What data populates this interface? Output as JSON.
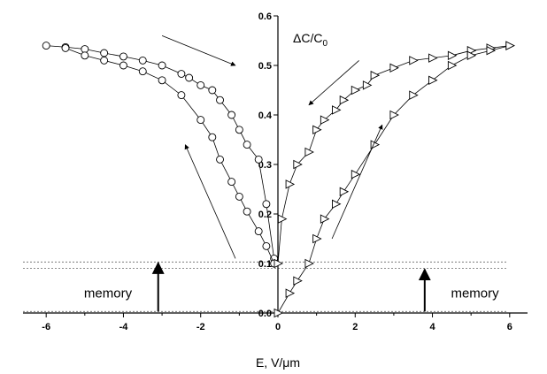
{
  "chart_data": {
    "type": "scatter",
    "xlabel": "E, V/μm",
    "ylabel_main": "ΔC/C",
    "ylabel_sub": "0",
    "xlim": [
      -6.6,
      6.6
    ],
    "ylim": [
      0,
      0.6
    ],
    "xticks": [
      -6,
      -4,
      -2,
      0,
      2,
      4,
      6
    ],
    "xtick_labels": [
      "-6",
      "-4",
      "-2",
      "0",
      "2",
      "4",
      "6"
    ],
    "yticks": [
      0.0,
      0.1,
      0.2,
      0.3,
      0.4,
      0.5,
      0.6
    ],
    "ytick_labels": [
      "0.0",
      "0.1",
      "0.2",
      "0.3",
      "0.4",
      "0.5",
      "0.6"
    ],
    "reference_lines": [
      0.103,
      0.09,
      0.003
    ],
    "annotations": [
      {
        "text": "memory",
        "x": -4.4,
        "y": 0.04
      },
      {
        "text": "memory",
        "x": 5.1,
        "y": 0.04
      }
    ],
    "memory_arrows": [
      {
        "x": -3.1,
        "from": 0.003,
        "to": 0.103
      },
      {
        "x": 3.8,
        "from": 0.003,
        "to": 0.09
      }
    ],
    "direction_arrows": [
      {
        "from": [
          -3.0,
          0.56
        ],
        "to": [
          -1.1,
          0.5
        ]
      },
      {
        "from": [
          -1.1,
          0.11
        ],
        "to": [
          -2.4,
          0.34
        ]
      },
      {
        "from": [
          2.1,
          0.51
        ],
        "to": [
          0.8,
          0.42
        ]
      },
      {
        "from": [
          1.4,
          0.15
        ],
        "to": [
          2.7,
          0.38
        ]
      }
    ],
    "series": [
      {
        "marker": "circle",
        "x": [
          -6.0,
          -5.5,
          -5.0,
          -4.5,
          -4.0,
          -3.5,
          -3.0,
          -2.5,
          -2.3,
          -2.0,
          -1.7,
          -1.5,
          -1.2,
          -1.0,
          -0.8,
          -0.5,
          -0.3,
          -0.1
        ],
        "y": [
          0.54,
          0.537,
          0.533,
          0.525,
          0.518,
          0.51,
          0.5,
          0.483,
          0.475,
          0.46,
          0.45,
          0.43,
          0.4,
          0.37,
          0.34,
          0.31,
          0.22,
          0.11
        ]
      },
      {
        "marker": "circle",
        "x": [
          -5.5,
          -5.0,
          -4.5,
          -4.0,
          -3.5,
          -3.0,
          -2.5,
          -2.0,
          -1.7,
          -1.5,
          -1.2,
          -1.0,
          -0.8,
          -0.5,
          -0.3,
          -0.1
        ],
        "y": [
          0.535,
          0.52,
          0.51,
          0.5,
          0.488,
          0.47,
          0.44,
          0.39,
          0.355,
          0.31,
          0.265,
          0.235,
          0.205,
          0.165,
          0.135,
          0.1
        ]
      },
      {
        "marker": "triangle",
        "x": [
          0.0,
          0.1,
          0.3,
          0.5,
          0.8,
          1.0,
          1.2,
          1.5,
          1.7,
          2.0,
          2.3,
          2.5,
          3.0,
          3.5,
          4.0,
          4.5,
          5.0,
          5.5,
          6.0
        ],
        "y": [
          0.1,
          0.19,
          0.26,
          0.3,
          0.325,
          0.37,
          0.39,
          0.41,
          0.43,
          0.45,
          0.46,
          0.48,
          0.495,
          0.51,
          0.515,
          0.52,
          0.53,
          0.535,
          0.54
        ]
      },
      {
        "marker": "triangle",
        "x": [
          0.0,
          0.3,
          0.5,
          0.8,
          1.0,
          1.2,
          1.5,
          1.7,
          2.0,
          2.5,
          3.0,
          3.5,
          4.0,
          4.5,
          5.0,
          5.5,
          6.0
        ],
        "y": [
          0.0,
          0.04,
          0.065,
          0.1,
          0.15,
          0.19,
          0.22,
          0.245,
          0.28,
          0.34,
          0.4,
          0.44,
          0.47,
          0.5,
          0.52,
          0.53,
          0.54
        ]
      }
    ]
  }
}
